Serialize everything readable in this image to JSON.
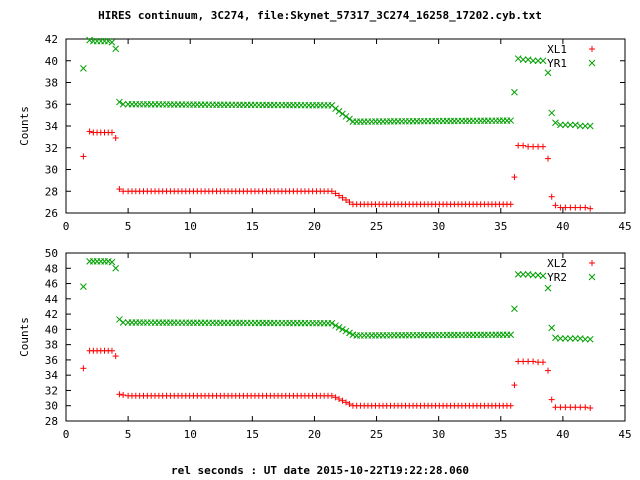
{
  "chart_data": {
    "title": "HIRES continuum, 3C274, file:Skynet_57317_3C274_16258_17202.cyb.txt",
    "xlabel": "rel seconds : UT date 2015-10-22T19:22:28.060",
    "panels": [
      {
        "type": "scatter",
        "ylabel": "Counts",
        "xlim": [
          0,
          45
        ],
        "ylim": [
          26,
          42
        ],
        "xticks": [
          0,
          5,
          10,
          15,
          20,
          25,
          30,
          35,
          40,
          45
        ],
        "yticks": [
          26,
          28,
          30,
          32,
          34,
          36,
          38,
          40,
          42
        ],
        "legend": "top-right",
        "series": [
          {
            "name": "XL1",
            "marker": "+",
            "color": "#ff0000",
            "pts": [
              [
                1.4,
                31.2
              ],
              [
                1.9,
                33.5
              ],
              [
                2.2,
                33.4
              ],
              [
                2.5,
                33.4
              ],
              [
                2.8,
                33.4
              ],
              [
                3.1,
                33.4
              ],
              [
                3.4,
                33.4
              ],
              [
                3.7,
                33.4
              ],
              [
                4.0,
                32.9
              ],
              [
                4.3,
                28.2
              ],
              [
                4.6,
                28.0
              ],
              [
                36.1,
                29.3
              ],
              [
                36.4,
                32.2
              ],
              [
                36.8,
                32.2
              ],
              [
                37.2,
                32.1
              ],
              [
                37.6,
                32.1
              ],
              [
                38.0,
                32.1
              ],
              [
                38.4,
                32.1
              ],
              [
                38.8,
                31.0
              ],
              [
                39.1,
                27.5
              ],
              [
                39.4,
                26.7
              ],
              [
                39.8,
                26.5
              ],
              [
                40.2,
                26.5
              ],
              [
                40.6,
                26.5
              ],
              [
                41.0,
                26.5
              ],
              [
                41.4,
                26.5
              ],
              [
                41.8,
                26.5
              ],
              [
                42.2,
                26.4
              ]
            ],
            "segments": [
              {
                "x0": 5.0,
                "x1": 21.4,
                "n": 54,
                "y0": 28.0,
                "y1": 28.0
              },
              {
                "x0": 21.7,
                "x1": 23.1,
                "n": 6,
                "y0": 27.8,
                "y1": 26.8
              },
              {
                "x0": 23.4,
                "x1": 35.8,
                "n": 42,
                "y0": 26.8,
                "y1": 26.8
              }
            ]
          },
          {
            "name": "YR1",
            "marker": "x",
            "color": "#00a000",
            "pts": [
              [
                1.4,
                39.3
              ],
              [
                1.9,
                41.9
              ],
              [
                2.2,
                41.8
              ],
              [
                2.5,
                41.8
              ],
              [
                2.8,
                41.8
              ],
              [
                3.1,
                41.8
              ],
              [
                3.4,
                41.8
              ],
              [
                3.7,
                41.7
              ],
              [
                4.0,
                41.1
              ],
              [
                4.3,
                36.2
              ],
              [
                4.6,
                36.0
              ],
              [
                36.1,
                37.1
              ],
              [
                36.4,
                40.2
              ],
              [
                36.8,
                40.1
              ],
              [
                37.2,
                40.1
              ],
              [
                37.6,
                40.0
              ],
              [
                38.0,
                40.0
              ],
              [
                38.4,
                40.0
              ],
              [
                38.8,
                38.9
              ],
              [
                39.1,
                35.2
              ],
              [
                39.4,
                34.3
              ],
              [
                39.8,
                34.1
              ],
              [
                40.2,
                34.1
              ],
              [
                40.6,
                34.1
              ],
              [
                41.0,
                34.1
              ],
              [
                41.4,
                34.0
              ],
              [
                41.8,
                34.0
              ],
              [
                42.2,
                34.0
              ]
            ],
            "segments": [
              {
                "x0": 5.0,
                "x1": 21.4,
                "n": 54,
                "y0": 36.0,
                "y1": 35.9
              },
              {
                "x0": 21.7,
                "x1": 23.1,
                "n": 6,
                "y0": 35.6,
                "y1": 34.4
              },
              {
                "x0": 23.4,
                "x1": 35.8,
                "n": 42,
                "y0": 34.4,
                "y1": 34.5
              }
            ]
          }
        ]
      },
      {
        "type": "scatter",
        "ylabel": "Counts",
        "xlim": [
          0,
          45
        ],
        "ylim": [
          28,
          50
        ],
        "xticks": [
          0,
          5,
          10,
          15,
          20,
          25,
          30,
          35,
          40,
          45
        ],
        "yticks": [
          28,
          30,
          32,
          34,
          36,
          38,
          40,
          42,
          44,
          46,
          48,
          50
        ],
        "legend": "top-right",
        "series": [
          {
            "name": "XL2",
            "marker": "+",
            "color": "#ff0000",
            "pts": [
              [
                1.4,
                34.9
              ],
              [
                1.9,
                37.2
              ],
              [
                2.2,
                37.2
              ],
              [
                2.5,
                37.2
              ],
              [
                2.8,
                37.2
              ],
              [
                3.1,
                37.2
              ],
              [
                3.4,
                37.2
              ],
              [
                3.7,
                37.2
              ],
              [
                4.0,
                36.5
              ],
              [
                4.3,
                31.5
              ],
              [
                4.6,
                31.4
              ],
              [
                36.1,
                32.7
              ],
              [
                36.4,
                35.8
              ],
              [
                36.8,
                35.8
              ],
              [
                37.2,
                35.8
              ],
              [
                37.6,
                35.8
              ],
              [
                38.0,
                35.7
              ],
              [
                38.4,
                35.7
              ],
              [
                38.8,
                34.6
              ],
              [
                39.1,
                30.8
              ],
              [
                39.4,
                29.8
              ],
              [
                39.8,
                29.8
              ],
              [
                40.2,
                29.8
              ],
              [
                40.6,
                29.8
              ],
              [
                41.0,
                29.8
              ],
              [
                41.4,
                29.8
              ],
              [
                41.8,
                29.8
              ],
              [
                42.2,
                29.7
              ]
            ],
            "segments": [
              {
                "x0": 5.0,
                "x1": 21.4,
                "n": 54,
                "y0": 31.3,
                "y1": 31.3
              },
              {
                "x0": 21.7,
                "x1": 23.1,
                "n": 6,
                "y0": 31.1,
                "y1": 30.0
              },
              {
                "x0": 23.4,
                "x1": 35.8,
                "n": 42,
                "y0": 30.0,
                "y1": 30.0
              }
            ]
          },
          {
            "name": "YR2",
            "marker": "x",
            "color": "#00a000",
            "pts": [
              [
                1.4,
                45.6
              ],
              [
                1.9,
                48.9
              ],
              [
                2.2,
                48.9
              ],
              [
                2.5,
                48.9
              ],
              [
                2.8,
                48.9
              ],
              [
                3.1,
                48.9
              ],
              [
                3.4,
                48.9
              ],
              [
                3.7,
                48.8
              ],
              [
                4.0,
                48.0
              ],
              [
                4.3,
                41.3
              ],
              [
                4.6,
                40.9
              ],
              [
                36.1,
                42.7
              ],
              [
                36.4,
                47.2
              ],
              [
                36.8,
                47.2
              ],
              [
                37.2,
                47.2
              ],
              [
                37.6,
                47.1
              ],
              [
                38.0,
                47.1
              ],
              [
                38.4,
                47.0
              ],
              [
                38.8,
                45.4
              ],
              [
                39.1,
                40.2
              ],
              [
                39.4,
                38.9
              ],
              [
                39.8,
                38.8
              ],
              [
                40.2,
                38.8
              ],
              [
                40.6,
                38.8
              ],
              [
                41.0,
                38.8
              ],
              [
                41.4,
                38.8
              ],
              [
                41.8,
                38.7
              ],
              [
                42.2,
                38.7
              ]
            ],
            "segments": [
              {
                "x0": 5.0,
                "x1": 21.4,
                "n": 54,
                "y0": 40.9,
                "y1": 40.8
              },
              {
                "x0": 21.7,
                "x1": 23.1,
                "n": 6,
                "y0": 40.5,
                "y1": 39.3
              },
              {
                "x0": 23.4,
                "x1": 35.8,
                "n": 42,
                "y0": 39.2,
                "y1": 39.3
              }
            ]
          }
        ]
      }
    ]
  }
}
